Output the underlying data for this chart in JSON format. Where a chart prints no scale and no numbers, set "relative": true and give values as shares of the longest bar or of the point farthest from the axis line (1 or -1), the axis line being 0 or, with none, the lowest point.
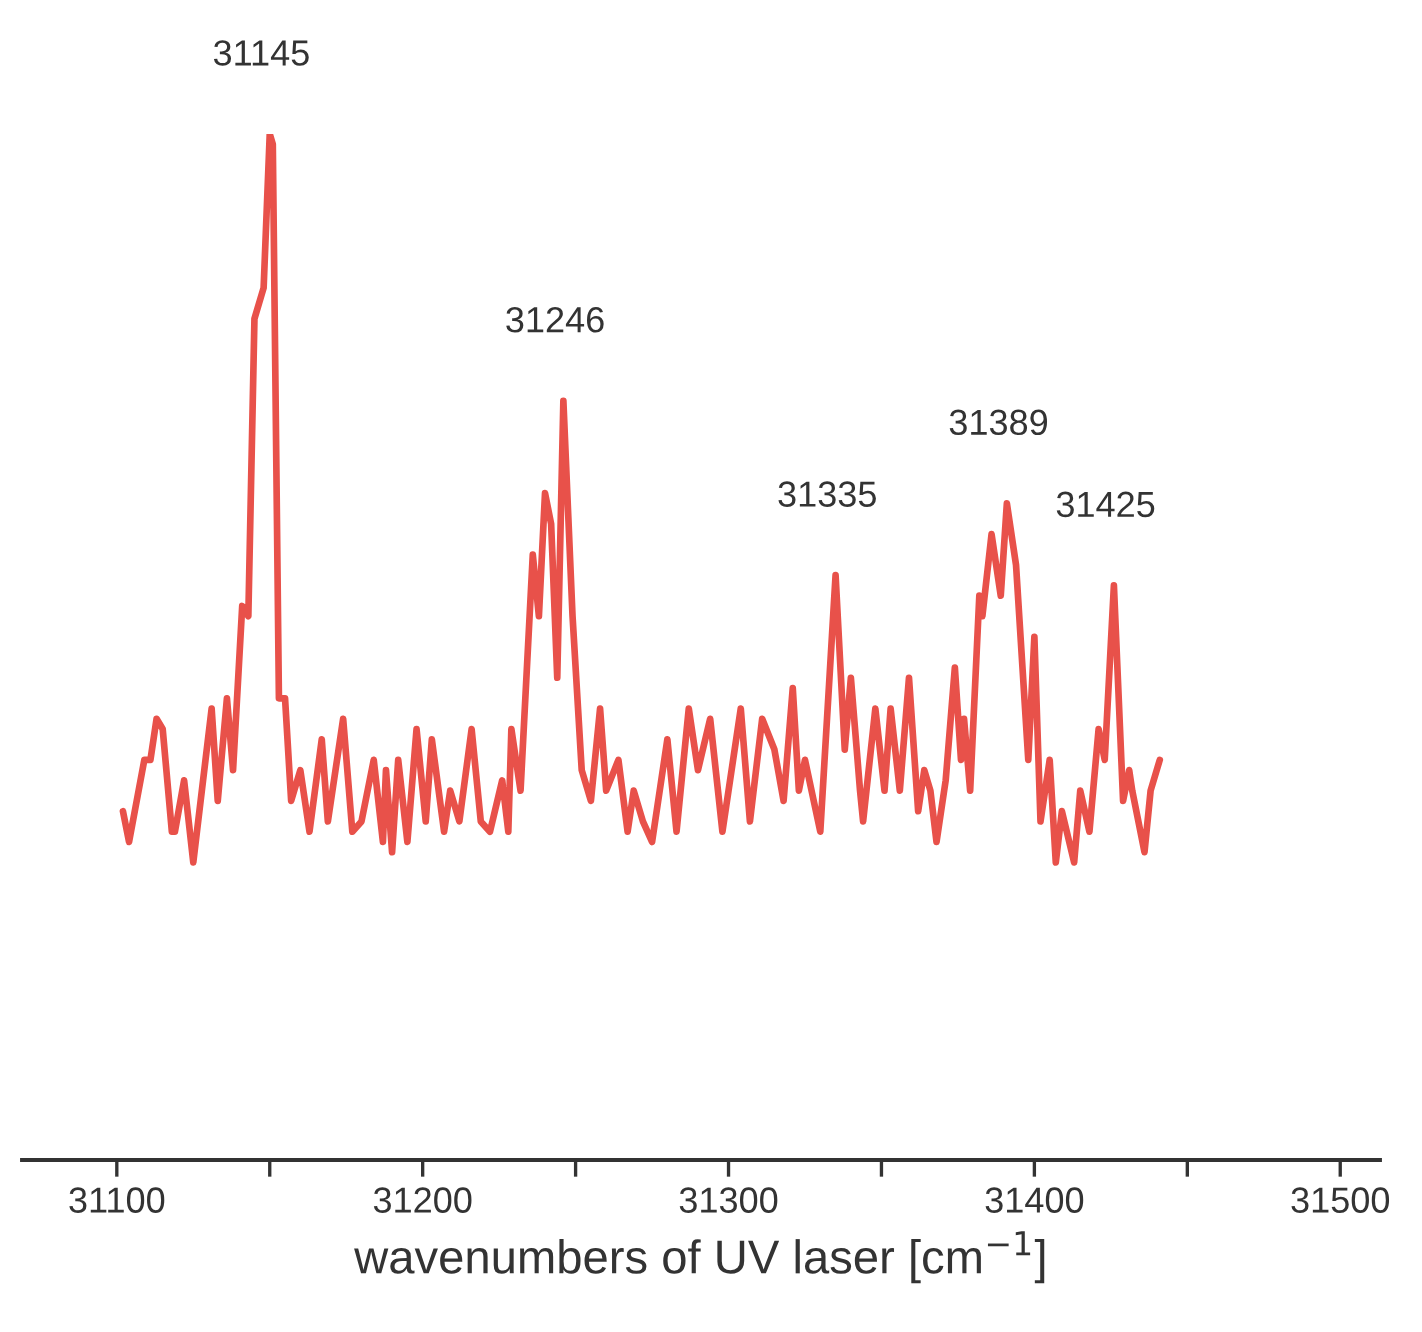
{
  "chart_data": {
    "type": "line",
    "relative": true,
    "xlabel": "wavenumbers of UV laser [cm$^{−1}$]",
    "xlim": [
      31069,
      31513
    ],
    "xticks": [
      31100,
      {
        "value": 31150,
        "label": null
      },
      31200,
      {
        "value": 31250,
        "label": null
      },
      31300,
      {
        "value": 31350,
        "label": null
      },
      31400,
      {
        "value": 31450,
        "label": null
      },
      31500
    ],
    "tick_labels": "x",
    "grid": false,
    "legend": false,
    "marker": "none",
    "line_style": "solid",
    "annotations": [
      {
        "text": "31145",
        "x": 31150,
        "y": 1.0
      },
      {
        "text": "31246",
        "x": 31246,
        "y": 0.74
      },
      {
        "text": "31335",
        "x": 31335,
        "y": 0.57
      },
      {
        "text": "31389",
        "x": 31391,
        "y": 0.64
      },
      {
        "text": "31425",
        "x": 31426,
        "y": 0.56
      }
    ],
    "series": [
      {
        "color": "#e8514a",
        "x": [
          31102,
          31104,
          31109,
          31111,
          31113,
          31115,
          31118,
          31119,
          31122,
          31125,
          31131,
          31133,
          31136,
          31138,
          31141,
          31143,
          31145,
          31148,
          31150,
          31151,
          31153,
          31155,
          31157,
          31160,
          31163,
          31167,
          31169,
          31174,
          31177,
          31180,
          31184,
          31187,
          31188,
          31190,
          31192,
          31195,
          31198,
          31201,
          31203,
          31207,
          31209,
          31212,
          31216,
          31219,
          31222,
          31226,
          31228,
          31229,
          31232,
          31236,
          31238,
          31240,
          31242,
          31244,
          31246,
          31249,
          31252,
          31255,
          31258,
          31260,
          31264,
          31267,
          31269,
          31272,
          31275,
          31280,
          31283,
          31287,
          31290,
          31294,
          31298,
          31304,
          31307,
          31311,
          31315,
          31318,
          31321,
          31323,
          31325,
          31330,
          31335,
          31338,
          31340,
          31343,
          31344,
          31348,
          31351,
          31353,
          31356,
          31359,
          31362,
          31364,
          31366,
          31368,
          31371,
          31374,
          31376,
          31377,
          31379,
          31382,
          31383,
          31386,
          31389,
          31391,
          31394,
          31398,
          31400,
          31402,
          31405,
          31407,
          31409,
          31413,
          31415,
          31418,
          31421,
          31423,
          31426,
          31429,
          31431,
          31432,
          31436,
          31438,
          31441
        ],
        "values": [
          0.34,
          0.31,
          0.39,
          0.39,
          0.43,
          0.42,
          0.32,
          0.32,
          0.37,
          0.29,
          0.44,
          0.35,
          0.45,
          0.38,
          0.54,
          0.53,
          0.82,
          0.85,
          1.0,
          0.99,
          0.45,
          0.45,
          0.35,
          0.38,
          0.32,
          0.41,
          0.33,
          0.43,
          0.32,
          0.33,
          0.39,
          0.31,
          0.38,
          0.3,
          0.39,
          0.31,
          0.42,
          0.33,
          0.41,
          0.32,
          0.36,
          0.33,
          0.42,
          0.33,
          0.32,
          0.37,
          0.32,
          0.42,
          0.36,
          0.59,
          0.53,
          0.65,
          0.62,
          0.47,
          0.74,
          0.53,
          0.38,
          0.35,
          0.44,
          0.36,
          0.39,
          0.32,
          0.36,
          0.33,
          0.31,
          0.41,
          0.32,
          0.44,
          0.38,
          0.43,
          0.32,
          0.44,
          0.33,
          0.43,
          0.4,
          0.35,
          0.46,
          0.36,
          0.39,
          0.32,
          0.57,
          0.4,
          0.47,
          0.36,
          0.33,
          0.44,
          0.36,
          0.44,
          0.36,
          0.47,
          0.34,
          0.38,
          0.36,
          0.31,
          0.37,
          0.48,
          0.39,
          0.43,
          0.36,
          0.55,
          0.53,
          0.61,
          0.55,
          0.64,
          0.58,
          0.39,
          0.51,
          0.33,
          0.39,
          0.29,
          0.34,
          0.29,
          0.36,
          0.32,
          0.42,
          0.39,
          0.56,
          0.35,
          0.38,
          0.36,
          0.3,
          0.36,
          0.39
        ]
      }
    ]
  }
}
